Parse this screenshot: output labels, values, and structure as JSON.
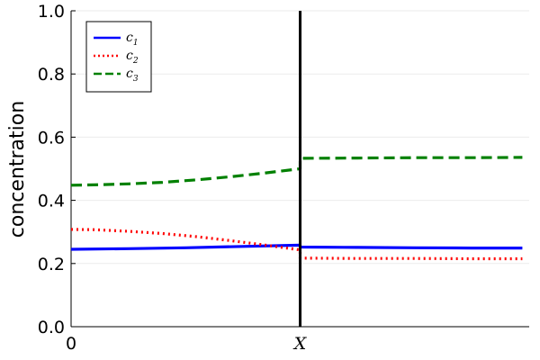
{
  "chart_data": {
    "type": "line",
    "ylabel": "concentration",
    "xlabel": "",
    "xlim": [
      0,
      2
    ],
    "ylim": [
      0,
      1
    ],
    "x_ticks": [
      {
        "value": 0,
        "label": "0"
      },
      {
        "value": 1,
        "label": "X"
      }
    ],
    "y_ticks": [
      {
        "value": 0.0,
        "label": "0.0"
      },
      {
        "value": 0.2,
        "label": "0.2"
      },
      {
        "value": 0.4,
        "label": "0.4"
      },
      {
        "value": 0.6,
        "label": "0.6"
      },
      {
        "value": 0.8,
        "label": "0.8"
      },
      {
        "value": 1.0,
        "label": "1.0"
      }
    ],
    "grid": true,
    "legend_position": "top-left",
    "vertical_line": {
      "x": 1,
      "color": "#000000"
    },
    "series": [
      {
        "name": "c",
        "subscript": "1",
        "color": "#0000ff",
        "dash": "solid",
        "x": [
          0,
          0.25,
          0.5,
          0.75,
          1.0,
          1.0,
          1.25,
          1.5,
          1.75,
          1.97
        ],
        "y": [
          0.245,
          0.247,
          0.25,
          0.254,
          0.258,
          0.252,
          0.251,
          0.25,
          0.249,
          0.249
        ]
      },
      {
        "name": "c",
        "subscript": "2",
        "color": "#ff0000",
        "dash": "dot",
        "x": [
          0,
          0.1,
          0.25,
          0.4,
          0.55,
          0.7,
          0.85,
          1.0,
          1.0,
          1.25,
          1.5,
          1.75,
          1.97
        ],
        "y": [
          0.308,
          0.307,
          0.302,
          0.295,
          0.285,
          0.272,
          0.258,
          0.243,
          0.217,
          0.216,
          0.216,
          0.215,
          0.215
        ]
      },
      {
        "name": "c",
        "subscript": "3",
        "color": "#008000",
        "dash": "dash",
        "x": [
          0,
          0.1,
          0.25,
          0.4,
          0.55,
          0.7,
          0.85,
          1.0,
          1.0,
          1.25,
          1.5,
          1.75,
          1.97
        ],
        "y": [
          0.448,
          0.449,
          0.452,
          0.457,
          0.465,
          0.475,
          0.487,
          0.5,
          0.533,
          0.534,
          0.535,
          0.535,
          0.536
        ]
      }
    ]
  }
}
